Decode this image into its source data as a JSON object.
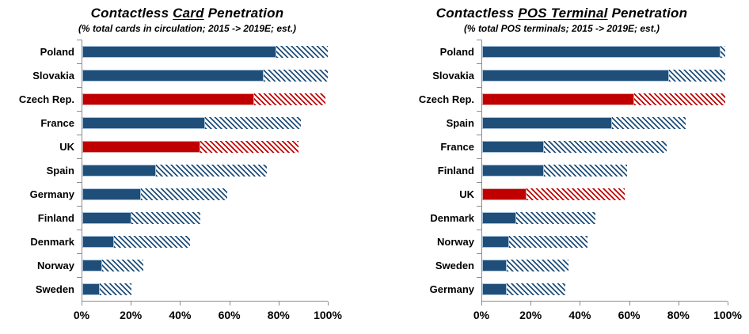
{
  "colors": {
    "bar_blue": "#1F4E79",
    "bar_red": "#C00000",
    "bar_blue_border": "#A9C4DE",
    "bar_red_border": "#DCA3A3",
    "axis": "#8C8C8C",
    "text": "#000000",
    "background": "#FFFFFF"
  },
  "chart_data": [
    {
      "type": "bar",
      "orientation": "horizontal",
      "title": "Contactless Card Penetration",
      "title_parts": [
        {
          "text": "Contactless ",
          "underline": false
        },
        {
          "text": "Card",
          "underline": true
        },
        {
          "text": " Penetration",
          "underline": false
        }
      ],
      "subtitle": "(% total cards in circulation; 2015 -> 2019E; est.)",
      "categories": [
        "Poland",
        "Slovakia",
        "Czech Rep.",
        "France",
        "UK",
        "Spain",
        "Germany",
        "Finland",
        "Denmark",
        "Norway",
        "Sweden"
      ],
      "series": [
        {
          "name": "2015",
          "style": "solid",
          "values": [
            79,
            74,
            70,
            50,
            48,
            30,
            24,
            20,
            13,
            8,
            7
          ]
        },
        {
          "name": "2019E",
          "style": "hatched",
          "values": [
            100,
            100,
            99,
            89,
            88,
            75,
            59,
            48,
            44,
            25,
            20
          ]
        }
      ],
      "highlighted_categories": [
        "Czech Rep.",
        "UK"
      ],
      "xlim": [
        0,
        100
      ],
      "x_tick_labels": [
        "0%",
        "20%",
        "40%",
        "60%",
        "80%",
        "100%"
      ],
      "grid": false,
      "legend": false
    },
    {
      "type": "bar",
      "orientation": "horizontal",
      "title": "Contactless POS Terminal Penetration",
      "title_parts": [
        {
          "text": "Contactless ",
          "underline": false
        },
        {
          "text": "POS Terminal",
          "underline": true
        },
        {
          "text": " Penetration",
          "underline": false
        }
      ],
      "subtitle": "(% total POS terminals; 2015 -> 2019E; est.)",
      "categories": [
        "Poland",
        "Slovakia",
        "Czech Rep.",
        "Spain",
        "France",
        "Finland",
        "UK",
        "Denmark",
        "Norway",
        "Sweden",
        "Germany"
      ],
      "series": [
        {
          "name": "2015",
          "style": "solid",
          "values": [
            97,
            76,
            62,
            53,
            25,
            25,
            18,
            14,
            11,
            10,
            10
          ]
        },
        {
          "name": "2019E",
          "style": "hatched",
          "values": [
            99,
            99,
            99,
            83,
            75,
            59,
            58,
            46,
            43,
            35,
            34
          ]
        }
      ],
      "highlighted_categories": [
        "Czech Rep.",
        "UK"
      ],
      "xlim": [
        0,
        100
      ],
      "x_tick_labels": [
        "0%",
        "20%",
        "40%",
        "60%",
        "80%",
        "100%"
      ],
      "grid": false,
      "legend": false
    }
  ]
}
